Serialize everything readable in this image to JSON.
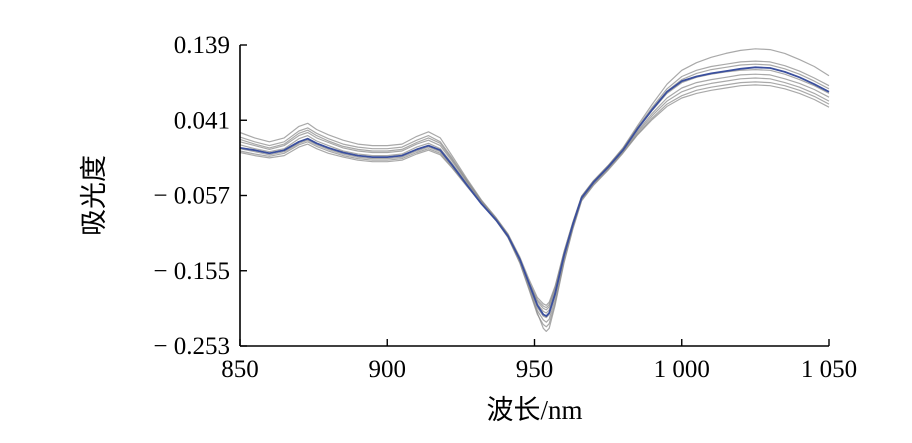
{
  "chart_data": {
    "type": "line",
    "title": "",
    "xlabel": "波长/nm",
    "ylabel": "吸光度",
    "xlim": [
      850,
      1050
    ],
    "ylim": [
      -0.253,
      0.139
    ],
    "x_ticks": [
      850,
      900,
      950,
      1000,
      1050
    ],
    "x_tick_labels": [
      "850",
      "900",
      "950",
      "1 000",
      "1 050"
    ],
    "y_ticks": [
      0.139,
      0.041,
      -0.057,
      -0.155,
      -0.253
    ],
    "y_tick_labels": [
      "0.139",
      "0.041",
      "− 0.057",
      "− 0.155",
      "− 0.253"
    ],
    "grid": false,
    "legend": "none",
    "colors": {
      "samples": "#8c8c8c",
      "highlight": "#3a4f9e"
    },
    "x": [
      850,
      855,
      860,
      865,
      870,
      873,
      876,
      880,
      885,
      890,
      895,
      900,
      905,
      910,
      914,
      918,
      922,
      927,
      932,
      937,
      941,
      945,
      948,
      951,
      953,
      954,
      955,
      957,
      960,
      963,
      966,
      970,
      975,
      980,
      985,
      990,
      995,
      1000,
      1005,
      1010,
      1015,
      1020,
      1025,
      1030,
      1035,
      1040,
      1045,
      1050
    ],
    "series": [
      {
        "role": "highlight",
        "values": [
          0.005,
          0.002,
          -0.002,
          0.002,
          0.013,
          0.017,
          0.011,
          0.005,
          -0.001,
          -0.005,
          -0.007,
          -0.007,
          -0.005,
          0.003,
          0.008,
          0.002,
          -0.017,
          -0.043,
          -0.068,
          -0.089,
          -0.11,
          -0.14,
          -0.17,
          -0.2,
          -0.212,
          -0.214,
          -0.21,
          -0.185,
          -0.135,
          -0.095,
          -0.06,
          -0.04,
          -0.02,
          0.002,
          0.03,
          0.055,
          0.078,
          0.092,
          0.098,
          0.102,
          0.105,
          0.108,
          0.11,
          0.109,
          0.104,
          0.097,
          0.088,
          0.078
        ]
      },
      {
        "role": "sample",
        "values": [
          0.025,
          0.018,
          0.013,
          0.018,
          0.033,
          0.037,
          0.029,
          0.022,
          0.015,
          0.01,
          0.008,
          0.008,
          0.01,
          0.02,
          0.026,
          0.018,
          -0.005,
          -0.035,
          -0.063,
          -0.086,
          -0.107,
          -0.137,
          -0.165,
          -0.19,
          -0.198,
          -0.2,
          -0.196,
          -0.175,
          -0.13,
          -0.092,
          -0.058,
          -0.038,
          -0.018,
          0.005,
          0.034,
          0.062,
          0.088,
          0.106,
          0.116,
          0.123,
          0.128,
          0.132,
          0.134,
          0.133,
          0.128,
          0.12,
          0.111,
          0.099
        ]
      },
      {
        "role": "sample",
        "values": [
          0.019,
          0.013,
          0.008,
          0.013,
          0.027,
          0.031,
          0.024,
          0.017,
          0.01,
          0.006,
          0.004,
          0.004,
          0.006,
          0.015,
          0.021,
          0.013,
          -0.008,
          -0.037,
          -0.064,
          -0.087,
          -0.108,
          -0.139,
          -0.168,
          -0.195,
          -0.204,
          -0.206,
          -0.202,
          -0.179,
          -0.132,
          -0.093,
          -0.059,
          -0.039,
          -0.019,
          0.004,
          0.032,
          0.058,
          0.082,
          0.098,
          0.106,
          0.111,
          0.114,
          0.117,
          0.118,
          0.117,
          0.112,
          0.105,
          0.096,
          0.086
        ]
      },
      {
        "role": "sample",
        "values": [
          0.013,
          0.008,
          0.003,
          0.008,
          0.021,
          0.025,
          0.018,
          0.012,
          0.005,
          0.001,
          -0.001,
          -0.001,
          0.001,
          0.01,
          0.015,
          0.008,
          -0.012,
          -0.039,
          -0.065,
          -0.087,
          -0.109,
          -0.14,
          -0.17,
          -0.198,
          -0.208,
          -0.21,
          -0.206,
          -0.182,
          -0.134,
          -0.094,
          -0.06,
          -0.04,
          -0.02,
          0.003,
          0.03,
          0.054,
          0.076,
          0.09,
          0.097,
          0.101,
          0.104,
          0.106,
          0.107,
          0.106,
          0.101,
          0.094,
          0.086,
          0.076
        ]
      },
      {
        "role": "sample",
        "values": [
          0.009,
          0.004,
          0.0,
          0.004,
          0.017,
          0.021,
          0.014,
          0.008,
          0.001,
          -0.003,
          -0.005,
          -0.005,
          -0.003,
          0.006,
          0.011,
          0.004,
          -0.015,
          -0.041,
          -0.066,
          -0.088,
          -0.11,
          -0.142,
          -0.173,
          -0.203,
          -0.214,
          -0.216,
          -0.212,
          -0.187,
          -0.137,
          -0.096,
          -0.061,
          -0.041,
          -0.021,
          0.001,
          0.027,
          0.05,
          0.07,
          0.083,
          0.09,
          0.094,
          0.097,
          0.1,
          0.101,
          0.1,
          0.095,
          0.089,
          0.081,
          0.071
        ]
      },
      {
        "role": "sample",
        "values": [
          0.004,
          0.0,
          -0.004,
          0.0,
          0.011,
          0.015,
          0.009,
          0.003,
          -0.003,
          -0.007,
          -0.009,
          -0.009,
          -0.007,
          0.001,
          0.006,
          0.0,
          -0.018,
          -0.043,
          -0.067,
          -0.089,
          -0.111,
          -0.143,
          -0.175,
          -0.207,
          -0.219,
          -0.222,
          -0.218,
          -0.192,
          -0.14,
          -0.098,
          -0.062,
          -0.042,
          -0.022,
          0.0,
          0.025,
          0.047,
          0.066,
          0.078,
          0.085,
          0.089,
          0.092,
          0.095,
          0.096,
          0.095,
          0.09,
          0.084,
          0.076,
          0.066
        ]
      },
      {
        "role": "sample",
        "values": [
          -0.001,
          -0.005,
          -0.008,
          -0.005,
          0.006,
          0.01,
          0.004,
          -0.002,
          -0.007,
          -0.011,
          -0.013,
          -0.013,
          -0.011,
          -0.003,
          0.002,
          -0.004,
          -0.021,
          -0.045,
          -0.068,
          -0.09,
          -0.112,
          -0.145,
          -0.178,
          -0.212,
          -0.225,
          -0.228,
          -0.224,
          -0.197,
          -0.143,
          -0.1,
          -0.063,
          -0.043,
          -0.023,
          -0.001,
          0.023,
          0.044,
          0.062,
          0.073,
          0.08,
          0.084,
          0.087,
          0.09,
          0.091,
          0.09,
          0.086,
          0.08,
          0.072,
          0.062
        ]
      },
      {
        "role": "sample",
        "values": [
          0.016,
          0.01,
          0.005,
          0.01,
          0.024,
          0.028,
          0.021,
          0.014,
          0.007,
          0.003,
          0.001,
          0.001,
          0.003,
          0.012,
          0.018,
          0.011,
          -0.01,
          -0.038,
          -0.065,
          -0.087,
          -0.108,
          -0.14,
          -0.169,
          -0.193,
          -0.201,
          -0.203,
          -0.199,
          -0.177,
          -0.131,
          -0.092,
          -0.058,
          -0.038,
          -0.018,
          0.004,
          0.031,
          0.056,
          0.079,
          0.094,
          0.102,
          0.107,
          0.11,
          0.113,
          0.114,
          0.113,
          0.108,
          0.101,
          0.092,
          0.082
        ]
      },
      {
        "role": "sample",
        "values": [
          0.001,
          -0.003,
          -0.006,
          -0.002,
          0.009,
          0.013,
          0.007,
          0.001,
          -0.005,
          -0.009,
          -0.011,
          -0.011,
          -0.009,
          -0.001,
          0.004,
          -0.002,
          -0.02,
          -0.044,
          -0.068,
          -0.09,
          -0.111,
          -0.144,
          -0.176,
          -0.21,
          -0.23,
          -0.234,
          -0.23,
          -0.2,
          -0.145,
          -0.101,
          -0.064,
          -0.044,
          -0.024,
          -0.002,
          0.022,
          0.042,
          0.059,
          0.07,
          0.076,
          0.08,
          0.083,
          0.086,
          0.087,
          0.086,
          0.082,
          0.076,
          0.068,
          0.058
        ]
      }
    ]
  }
}
